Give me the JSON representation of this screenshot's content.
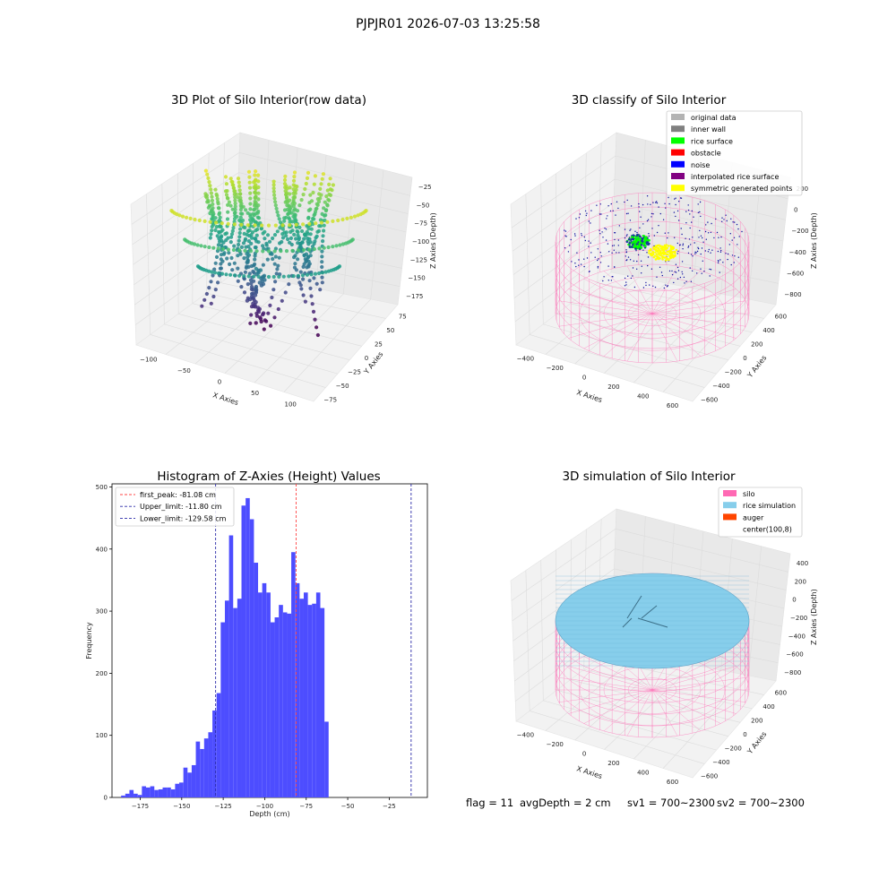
{
  "figure": {
    "suptitle": "PJPJR01 2026-07-03 13:25:58"
  },
  "chart_data": [
    {
      "id": "raw",
      "type": "scatter",
      "title": "3D Plot of Silo Interior(row data)",
      "xlabel": "X Axies",
      "ylabel": "Y Axies",
      "zlabel": "Z Axies (Depth)",
      "x_ticks": [
        "−100",
        "−50",
        "0",
        "50",
        "100"
      ],
      "y_ticks": [
        "−75",
        "−50",
        "−25",
        "0",
        "25",
        "50",
        "75"
      ],
      "z_ticks": [
        "−25",
        "−50",
        "−75",
        "−100",
        "−125",
        "−150",
        "−175"
      ],
      "xlim": [
        -130,
        120
      ],
      "ylim": [
        -90,
        90
      ],
      "zlim": [
        -190,
        -10
      ],
      "colormap": "viridis"
    },
    {
      "id": "classify",
      "type": "scatter",
      "title": "3D classify of Silo Interior",
      "xlabel": "X Axies",
      "ylabel": "Y Axies",
      "zlabel": "Z Axies (Depth)",
      "x_ticks": [
        "−400",
        "−200",
        "0",
        "200",
        "400",
        "600"
      ],
      "y_ticks": [
        "−600",
        "−400",
        "−200",
        "0",
        "200",
        "400",
        "600"
      ],
      "z_ticks": [
        "200",
        "0",
        "−200",
        "−400",
        "−600",
        "−800"
      ],
      "legend_placement": "top-right",
      "legend": [
        {
          "label": "original data",
          "color": "#b3b3b3"
        },
        {
          "label": "inner wall",
          "color": "#808080"
        },
        {
          "label": "rice surface",
          "color": "#00ff00"
        },
        {
          "label": "obstacle",
          "color": "#ff0000"
        },
        {
          "label": "noise",
          "color": "#0000ff"
        },
        {
          "label": "interpolated rice surface",
          "color": "#800080"
        },
        {
          "label": "symmetric generated points",
          "color": "#ffff00"
        }
      ]
    },
    {
      "id": "hist",
      "type": "bar",
      "title": "Histogram of Z-Axies (Height) Values",
      "xlabel": "Depth (cm)",
      "ylabel": "Frequency",
      "xlim": [
        -192,
        -2
      ],
      "ylim": [
        0,
        505
      ],
      "x_ticks": [
        -175,
        -150,
        -125,
        -100,
        -75,
        -50,
        -25
      ],
      "y_ticks": [
        0,
        100,
        200,
        300,
        400,
        500
      ],
      "bar_color": "#4d4dff",
      "bin_start": -186.5,
      "bin_width": 2.5,
      "values": [
        3,
        6,
        12,
        6,
        4,
        18,
        16,
        18,
        12,
        13,
        16,
        16,
        13,
        22,
        24,
        48,
        40,
        52,
        90,
        78,
        95,
        105,
        140,
        168,
        282,
        317,
        422,
        305,
        320,
        470,
        482,
        448,
        378,
        330,
        345,
        330,
        282,
        290,
        310,
        298,
        296,
        395,
        345,
        320,
        330,
        310,
        312,
        330,
        305,
        122
      ],
      "legend_placement": "top-left",
      "lines": [
        {
          "label": "first_peak: -81.08 cm",
          "x": -81.08,
          "color": "#ff4444"
        },
        {
          "label": "Upper_limit: -11.80 cm",
          "x": -11.8,
          "color": "#2a2aa8"
        },
        {
          "label": "Lower_limit: -129.58 cm",
          "x": -129.58,
          "color": "#2a2aa8"
        }
      ]
    },
    {
      "id": "sim",
      "type": "scatter",
      "title": "3D simulation of Silo Interior",
      "xlabel": "X Axies",
      "ylabel": "Y Axies",
      "zlabel": "Z Axies (Depth)",
      "x_ticks": [
        "−400",
        "−200",
        "0",
        "200",
        "400",
        "600"
      ],
      "y_ticks": [
        "−600",
        "−400",
        "−200",
        "0",
        "200",
        "400",
        "600"
      ],
      "z_ticks": [
        "400",
        "200",
        "0",
        "−200",
        "−400",
        "−600",
        "−800"
      ],
      "legend_placement": "top-right",
      "legend": [
        {
          "label": "silo",
          "color": "#ff69b4"
        },
        {
          "label": "rice simulation",
          "color": "#87ceeb"
        },
        {
          "label": "auger",
          "color": "#ff4500"
        },
        {
          "label": "center(100,8)",
          "color": ""
        }
      ]
    }
  ],
  "footer": {
    "flag": "flag = 11",
    "avg_depth": "avgDepth = 2 cm",
    "sv1": "sv1 = 700~2300",
    "sv2": "sv2 = 700~2300"
  }
}
